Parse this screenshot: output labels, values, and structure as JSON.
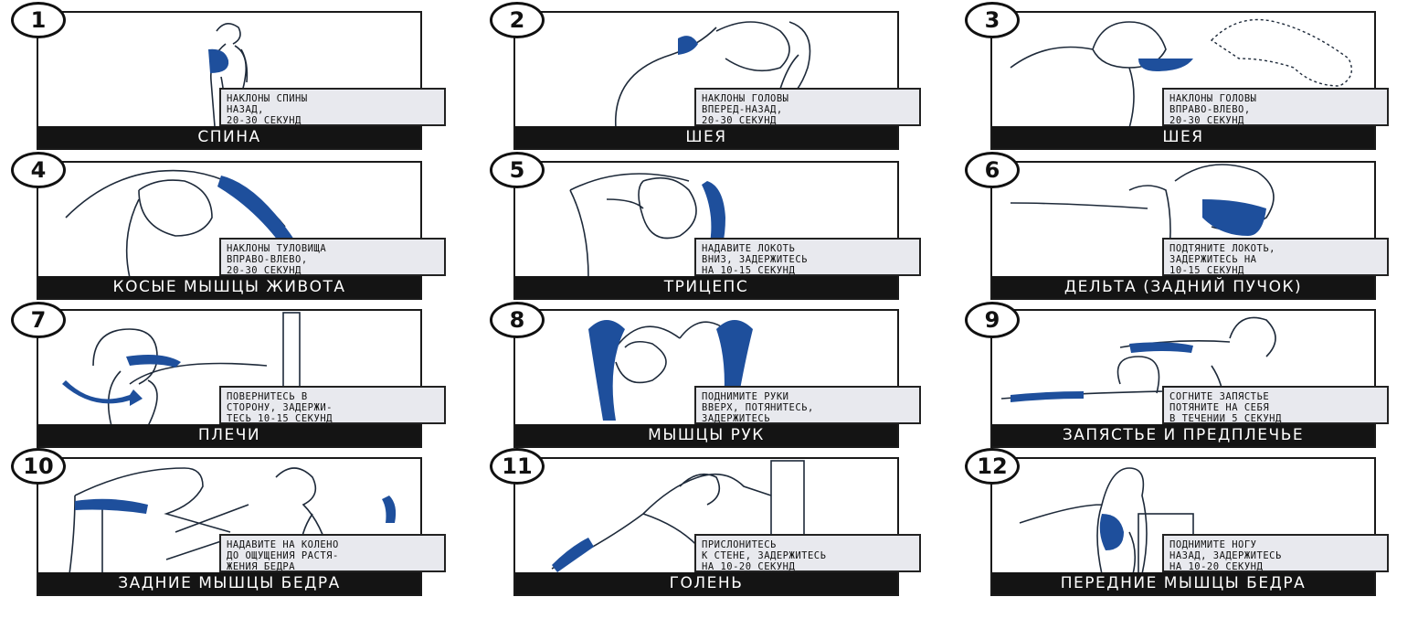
{
  "accent_color": "#1e4f9c",
  "panels": [
    {
      "number": "1",
      "caption": "НАКЛОНЫ СПИНЫ\nНАЗАД,\n20-30 СЕКУНД",
      "title": "СПИНА"
    },
    {
      "number": "2",
      "caption": "НАКЛОНЫ ГОЛОВЫ\nВПЕРЕД-НАЗАД,\n20-30 СЕКУНД",
      "title": "ШЕЯ"
    },
    {
      "number": "3",
      "caption": "НАКЛОНЫ ГОЛОВЫ\nВПРАВО-ВЛЕВО,\n20-30 СЕКУНД",
      "title": "ШЕЯ"
    },
    {
      "number": "4",
      "caption": "НАКЛОНЫ ТУЛОВИЩА\nВПРАВО-ВЛЕВО,\n20-30 СЕКУНД",
      "title": "КОСЫЕ МЫШЦЫ ЖИВОТА"
    },
    {
      "number": "5",
      "caption": "НАДАВИТЕ ЛОКОТЬ\nВНИЗ, ЗАДЕРЖИТЕСЬ\nНА 10-15 СЕКУНД",
      "title": "ТРИЦЕПС"
    },
    {
      "number": "6",
      "caption": "ПОДТЯНИТЕ ЛОКОТЬ,\nЗАДЕРЖИТЕСЬ НА\n10-15 СЕКУНД",
      "title": "ДЕЛЬТА (ЗАДНИЙ ПУЧОК)"
    },
    {
      "number": "7",
      "caption": "ПОВЕРНИТЕСЬ В\nСТОРОНУ, ЗАДЕРЖИ-\nТЕСЬ 10-15 СЕКУНД",
      "title": "ПЛЕЧИ"
    },
    {
      "number": "8",
      "caption": "ПОДНИМИТЕ РУКИ\nВВЕРХ, ПОТЯНИТЕСЬ,\nЗАДЕРЖИТЕСЬ",
      "title": "МЫШЦЫ РУК"
    },
    {
      "number": "9",
      "caption": "СОГНИТЕ ЗАПЯСТЬЕ\nПОТЯНИТЕ НА СЕБЯ\nВ ТЕЧЕНИИ 5 СЕКУНД",
      "title": "ЗАПЯСТЬЕ И ПРЕДПЛЕЧЬЕ"
    },
    {
      "number": "10",
      "caption": "НАДАВИТЕ НА КОЛЕНО\nДО ОЩУЩЕНИЯ РАСТЯ-\nЖЕНИЯ БЕДРА",
      "title": "ЗАДНИЕ МЫШЦЫ БЕДРА"
    },
    {
      "number": "11",
      "caption": "ПРИСЛОНИТЕСЬ\nК СТЕНЕ, ЗАДЕРЖИТЕСЬ\nНА 10-20 СЕКУНД",
      "title": "ГОЛЕНЬ"
    },
    {
      "number": "12",
      "caption": "ПОДНИМИТЕ НОГУ\nНАЗАД, ЗАДЕРЖИТЕСЬ\nНА 10-20 СЕКУНД",
      "title": "ПЕРЕДНИЕ МЫШЦЫ БЕДРА"
    }
  ]
}
